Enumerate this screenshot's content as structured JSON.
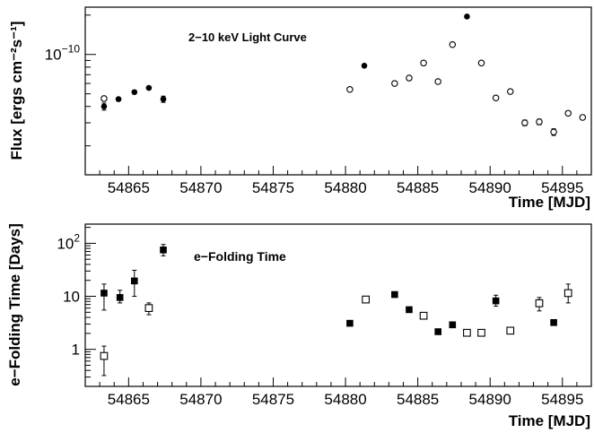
{
  "chart_data": [
    {
      "type": "scatter",
      "title": "2−10 keV Light Curve",
      "xlabel": "Time [MJD]",
      "ylabel": "Flux [ergs cm⁻²s⁻¹]",
      "xlim": [
        54862,
        54897
      ],
      "ylim": [
        1.2e-11,
        2.3e-10
      ],
      "yscale": "log",
      "xticks": [
        54865,
        54870,
        54875,
        54880,
        54885,
        54890,
        54895
      ],
      "ytick_label": {
        "value": 1e-10,
        "base": "10",
        "exponent": "−10"
      },
      "series": [
        {
          "marker": "filled-circle",
          "x": [
            54863.3,
            54864.3,
            54865.4,
            54866.4,
            54867.4,
            54881.3,
            54888.4
          ],
          "y": [
            4e-11,
            4.55e-11,
            5.15e-11,
            5.55e-11,
            4.55e-11,
            8.2e-11,
            1.95e-10
          ],
          "yerr": [
            2.5e-12,
            2e-12,
            1.5e-12,
            1.5e-12,
            2.5e-12,
            2e-12,
            2e-12
          ]
        },
        {
          "marker": "open-circle",
          "x": [
            54863.3,
            54880.3,
            54883.4,
            54884.4,
            54885.4,
            54886.4,
            54887.4,
            54889.4,
            54890.4,
            54891.4,
            54892.4,
            54893.4,
            54894.4,
            54895.4,
            54896.4
          ],
          "y": [
            4.6e-11,
            5.4e-11,
            6e-11,
            6.6e-11,
            8.6e-11,
            6.2e-11,
            1.19e-10,
            8.6e-11,
            4.65e-11,
            5.2e-11,
            3e-11,
            3.05e-11,
            2.55e-11,
            3.55e-11,
            3.3e-11
          ],
          "yerr": [
            2e-12,
            1.5e-12,
            1.5e-12,
            1.5e-12,
            1.5e-12,
            1.5e-12,
            1.5e-12,
            1.5e-12,
            1.5e-12,
            1.5e-12,
            1.5e-12,
            1.5e-12,
            1.5e-12,
            1e-12,
            1e-12
          ]
        }
      ]
    },
    {
      "type": "scatter",
      "title": "e−Folding Time",
      "xlabel": "Time [MJD]",
      "ylabel": "e−Folding Time [Days]",
      "xlim": [
        54862,
        54897
      ],
      "ylim": [
        0.2,
        230
      ],
      "yscale": "log",
      "xticks": [
        54865,
        54870,
        54875,
        54880,
        54885,
        54890,
        54895
      ],
      "yticks": [
        {
          "value": 1,
          "label": "1"
        },
        {
          "value": 10,
          "label": "10"
        },
        {
          "value": 100,
          "base": "10",
          "exponent": "2"
        }
      ],
      "series": [
        {
          "marker": "filled-square",
          "x": [
            54863.3,
            54864.4,
            54865.4,
            54867.4,
            54880.3,
            54883.4,
            54884.4,
            54886.4,
            54887.4,
            54890.4,
            54894.4
          ],
          "y": [
            11.5,
            9.5,
            19.5,
            75,
            3.1,
            10.8,
            5.6,
            2.15,
            2.9,
            8.2,
            3.2
          ],
          "ylo": [
            5.5,
            7.5,
            10,
            58,
            2.9,
            10,
            5.2,
            2.0,
            2.7,
            6.5,
            3.0
          ],
          "yhi": [
            17,
            13,
            31,
            95,
            3.3,
            11.6,
            6.0,
            2.3,
            3.1,
            10.5,
            3.4
          ]
        },
        {
          "marker": "open-square",
          "x": [
            54863.3,
            54866.4,
            54881.4,
            54885.4,
            54888.4,
            54889.4,
            54891.4,
            54893.4,
            54895.4
          ],
          "y": [
            0.75,
            6.0,
            8.7,
            4.3,
            2.05,
            2.05,
            2.25,
            7.4,
            11.5
          ],
          "ylo": [
            0.32,
            4.5,
            8.3,
            4.0,
            1.9,
            1.9,
            2.1,
            5.3,
            7.5
          ],
          "yhi": [
            1.15,
            7.5,
            9.1,
            4.6,
            2.2,
            2.2,
            2.4,
            9.5,
            17
          ]
        }
      ]
    }
  ]
}
